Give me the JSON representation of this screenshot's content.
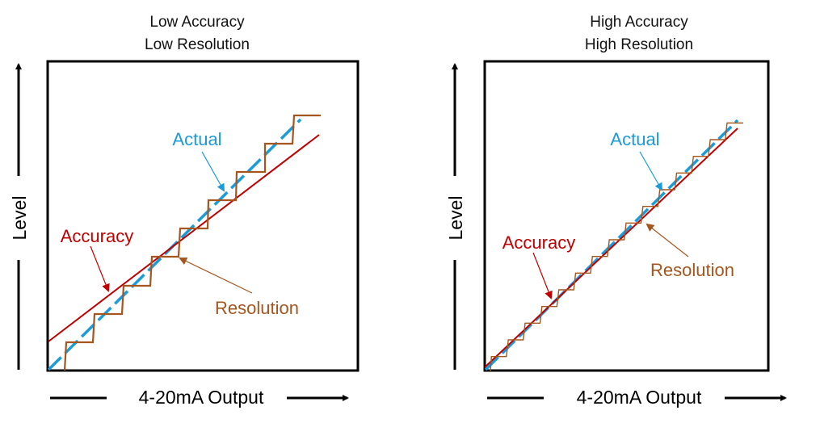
{
  "colors": {
    "actual": "#1b9bd7",
    "accuracy": "#c00000",
    "resolution": "#a5561f",
    "frame": "#000000"
  },
  "panels": [
    {
      "title_line1": "Low Accuracy",
      "title_line2": "Low Resolution",
      "actual_label": "Actual",
      "accuracy_label": "Accuracy",
      "resolution_label": "Resolution",
      "y_axis_label": "Level",
      "x_axis_label": "4-20mA Output"
    },
    {
      "title_line1": "High Accuracy",
      "title_line2": "High Resolution",
      "actual_label": "Actual",
      "accuracy_label": "Accuracy",
      "resolution_label": "Resolution",
      "y_axis_label": "Level",
      "x_axis_label": "4-20mA Output"
    }
  ]
}
